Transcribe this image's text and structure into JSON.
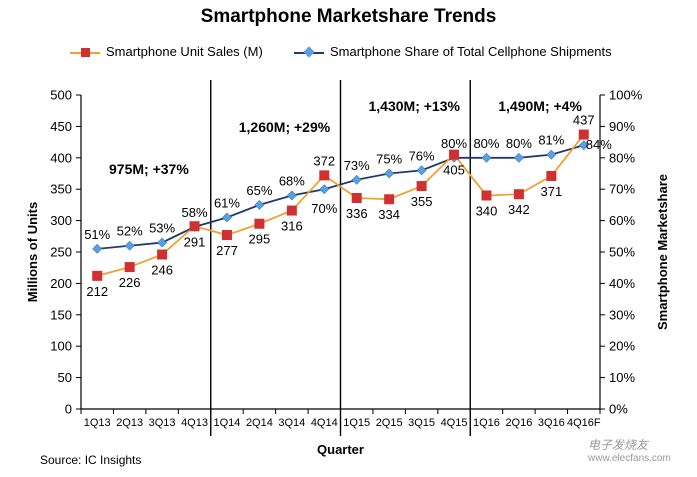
{
  "chart_data": {
    "type": "line",
    "title": "Smartphone Marketshare Trends",
    "categories": [
      "1Q13",
      "2Q13",
      "3Q13",
      "4Q13",
      "1Q14",
      "2Q14",
      "3Q14",
      "4Q14",
      "1Q15",
      "2Q15",
      "3Q15",
      "4Q15",
      "1Q16",
      "2Q16",
      "3Q16",
      "4Q16F"
    ],
    "xlabel": "Quarter",
    "ylabel": "Millions of Units",
    "y2label": "Smartphone Marketshare",
    "ylim": [
      0,
      500
    ],
    "y2lim": [
      0,
      100
    ],
    "yticks": [
      "0",
      "50",
      "100",
      "150",
      "200",
      "250",
      "300",
      "350",
      "400",
      "450",
      "500"
    ],
    "y2ticks": [
      "0%",
      "10%",
      "20%",
      "30%",
      "40%",
      "50%",
      "60%",
      "70%",
      "80%",
      "90%",
      "100%"
    ],
    "series": [
      {
        "name": "Smartphone Unit Sales (M)",
        "axis": "left",
        "color": "#f0a030",
        "marker_color": "#d03030",
        "values": [
          212,
          226,
          246,
          291,
          277,
          295,
          316,
          372,
          336,
          334,
          355,
          405,
          340,
          342,
          371,
          437
        ],
        "labels": [
          "212",
          "226",
          "246",
          "291",
          "277",
          "295",
          "316",
          "372",
          "336",
          "334",
          "355",
          "405",
          "340",
          "342",
          "371",
          "437"
        ]
      },
      {
        "name": "Smartphone Share of Total Cellphone Shipments",
        "axis": "right",
        "color": "#1f3a6e",
        "marker_color": "#5aa0e0",
        "values": [
          51,
          52,
          53,
          58,
          61,
          65,
          68,
          70,
          73,
          75,
          76,
          80,
          80,
          80,
          81,
          84
        ],
        "labels": [
          "51%",
          "52%",
          "53%",
          "58%",
          "61%",
          "65%",
          "68%",
          "70%",
          "73%",
          "75%",
          "76%",
          "80%",
          "80%",
          "80%",
          "81%",
          "84%"
        ]
      }
    ],
    "annotations": [
      {
        "text": "975M; +37%",
        "after_category": "1Q13"
      },
      {
        "text": "1,260M; +29%",
        "after_category": "1Q14"
      },
      {
        "text": "1,430M; +13%",
        "after_category": "1Q15"
      },
      {
        "text": "1,490M; +4%",
        "after_category": "1Q16"
      }
    ],
    "year_dividers_after": [
      "4Q13",
      "4Q14",
      "4Q15"
    ],
    "legend_position": "top"
  },
  "source": "Source: IC Insights",
  "watermark": {
    "text": "电子发烧友",
    "url": "www.elecfans.com"
  }
}
